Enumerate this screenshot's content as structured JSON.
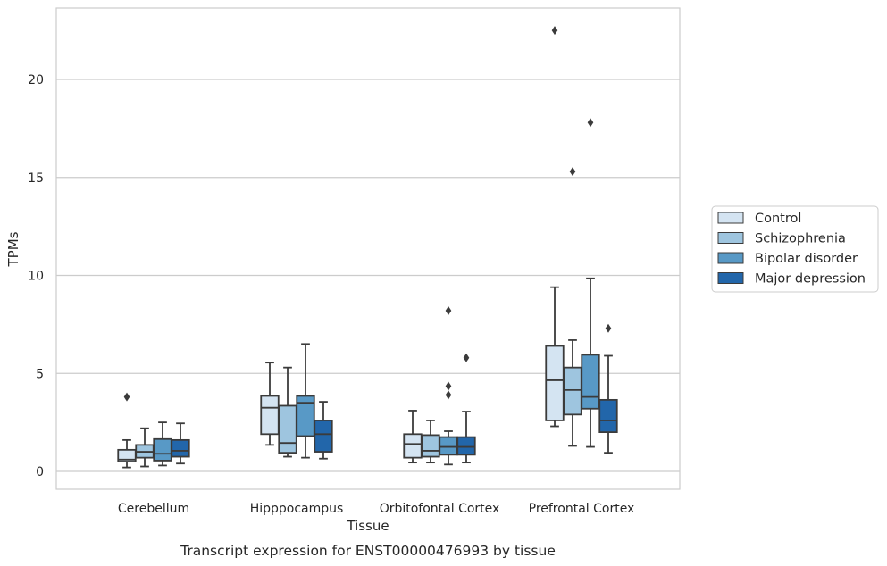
{
  "chart_data": {
    "type": "box",
    "caption": "Transcript expression for ENST00000476993 by tissue",
    "xlabel": "Tissue",
    "ylabel": "TPMs",
    "ylim": [
      -0.9,
      23.6
    ],
    "yticks": [
      0,
      5,
      10,
      15,
      20
    ],
    "grid": "horizontal",
    "legend_position": "right",
    "categories": [
      "Cerebellum",
      "Hipppocampus",
      "Orbitofontal Cortex",
      "Prefrontal Cortex"
    ],
    "series": [
      {
        "name": "Control",
        "color": "#d4e4f2",
        "boxes": [
          {
            "whislo": 0.2,
            "q1": 0.5,
            "med": 0.6,
            "q3": 1.1,
            "whishi": 1.6,
            "fliers": [
              3.8
            ]
          },
          {
            "whislo": 1.35,
            "q1": 1.9,
            "med": 3.25,
            "q3": 3.85,
            "whishi": 5.55,
            "fliers": []
          },
          {
            "whislo": 0.45,
            "q1": 0.7,
            "med": 1.4,
            "q3": 1.9,
            "whishi": 3.1,
            "fliers": []
          },
          {
            "whislo": 2.3,
            "q1": 2.6,
            "med": 4.65,
            "q3": 6.4,
            "whishi": 9.4,
            "fliers": [
              22.5
            ]
          }
        ]
      },
      {
        "name": "Schizophrenia",
        "color": "#9ec5df",
        "boxes": [
          {
            "whislo": 0.25,
            "q1": 0.7,
            "med": 1.0,
            "q3": 1.35,
            "whishi": 2.2,
            "fliers": []
          },
          {
            "whislo": 0.75,
            "q1": 0.95,
            "med": 1.45,
            "q3": 3.35,
            "whishi": 5.3,
            "fliers": []
          },
          {
            "whislo": 0.45,
            "q1": 0.75,
            "med": 1.05,
            "q3": 1.85,
            "whishi": 2.6,
            "fliers": []
          },
          {
            "whislo": 1.3,
            "q1": 2.9,
            "med": 4.15,
            "q3": 5.3,
            "whishi": 6.7,
            "fliers": [
              15.3
            ]
          }
        ]
      },
      {
        "name": "Bipolar disorder",
        "color": "#5899c6",
        "boxes": [
          {
            "whislo": 0.3,
            "q1": 0.55,
            "med": 0.9,
            "q3": 1.65,
            "whishi": 2.5,
            "fliers": []
          },
          {
            "whislo": 0.7,
            "q1": 1.8,
            "med": 3.5,
            "q3": 3.85,
            "whishi": 6.5,
            "fliers": []
          },
          {
            "whislo": 0.35,
            "q1": 0.85,
            "med": 1.25,
            "q3": 1.75,
            "whishi": 2.05,
            "fliers": [
              3.9,
              4.35,
              8.2
            ]
          },
          {
            "whislo": 1.25,
            "q1": 3.2,
            "med": 3.8,
            "q3": 5.95,
            "whishi": 9.85,
            "fliers": [
              17.8
            ]
          }
        ]
      },
      {
        "name": "Major depression",
        "color": "#2266aa",
        "boxes": [
          {
            "whislo": 0.4,
            "q1": 0.75,
            "med": 1.05,
            "q3": 1.6,
            "whishi": 2.45,
            "fliers": []
          },
          {
            "whislo": 0.65,
            "q1": 1.0,
            "med": 1.9,
            "q3": 2.6,
            "whishi": 3.55,
            "fliers": []
          },
          {
            "whislo": 0.45,
            "q1": 0.85,
            "med": 1.25,
            "q3": 1.75,
            "whishi": 3.05,
            "fliers": [
              5.8
            ]
          },
          {
            "whislo": 0.95,
            "q1": 2.0,
            "med": 2.6,
            "q3": 3.65,
            "whishi": 5.9,
            "fliers": [
              7.3
            ]
          }
        ]
      }
    ]
  }
}
